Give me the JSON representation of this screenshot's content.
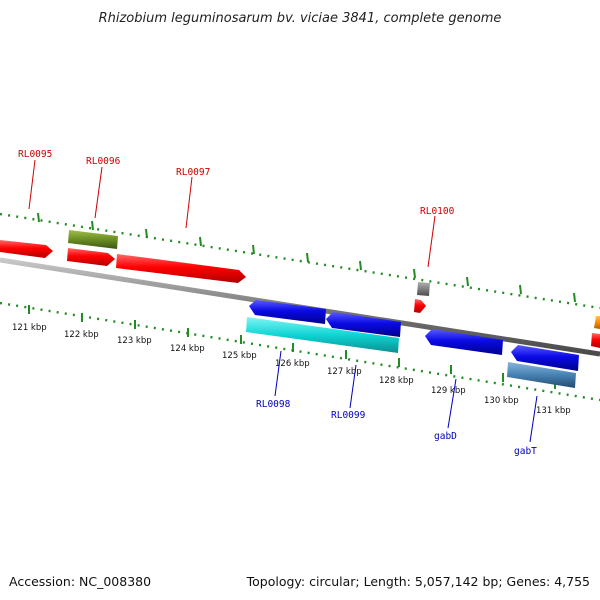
{
  "title": "Rhizobium leguminosarum bv. viciae 3841, complete genome",
  "footer": {
    "accession": "Accession: NC_008380",
    "topology": "Topology: circular; Length: 5,057,142 bp; Genes: 4,755"
  },
  "kbp_labels": [
    "121 kbp",
    "122 kbp",
    "123 kbp",
    "124 kbp",
    "125 kbp",
    "126 kbp",
    "127 kbp",
    "128 kbp",
    "129 kbp",
    "130 kbp",
    "131 kbp"
  ],
  "genes_forward": [
    "RL0095",
    "RL0096",
    "RL0097",
    "RL0100"
  ],
  "genes_reverse": [
    "RL0098",
    "RL0099",
    "gabD",
    "gabT"
  ],
  "colors": {
    "forward_cds": "#ff1010",
    "reverse_cds": "#0a0ae6",
    "cyan_feature": "#10d4d4",
    "olive_feature": "#6b8e23",
    "grey_feature": "#808080",
    "steel_feature": "#4682b4",
    "orange_feature": "#ff8c00",
    "tick_green": "#228b22",
    "backbone": "#7a7a7a",
    "label_red": "#cc0000",
    "label_blue": "#0000bb"
  }
}
